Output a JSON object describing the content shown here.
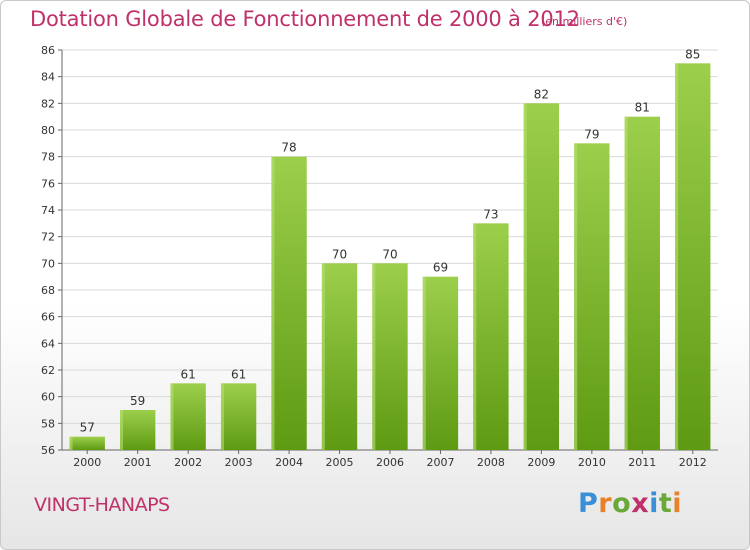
{
  "title": "Dotation Globale de Fonctionnement de 2000 à 2012",
  "subtitle": "(en milliers d'€)",
  "commune": "VINGT-HANAPS",
  "logo": {
    "letters": [
      "P",
      "r",
      "o",
      "x",
      "i",
      "t",
      "i"
    ],
    "colors": [
      "#3a8fd6",
      "#e8822a",
      "#6aa83a",
      "#c0306a",
      "#3a8fd6",
      "#6aa83a",
      "#e8822a"
    ]
  },
  "colors": {
    "accent": "#c0306a",
    "bar_light": "#9ccf4c",
    "bar_dark": "#5e9a12",
    "grid": "#d9d9d9",
    "axis_text": "#333333"
  },
  "chart_data": {
    "type": "bar",
    "title": "Dotation Globale de Fonctionnement de 2000 à 2012",
    "xlabel": "",
    "ylabel": "(en milliers d'€)",
    "categories": [
      "2000",
      "2001",
      "2002",
      "2003",
      "2004",
      "2005",
      "2006",
      "2007",
      "2008",
      "2009",
      "2010",
      "2011",
      "2012"
    ],
    "values": [
      57,
      59,
      61,
      61,
      78,
      70,
      70,
      69,
      73,
      82,
      79,
      81,
      85
    ],
    "ylim": [
      56,
      86
    ],
    "yticks": [
      56,
      58,
      60,
      62,
      64,
      66,
      68,
      70,
      72,
      74,
      76,
      78,
      80,
      82,
      84,
      86
    ],
    "grid": true,
    "legend": "none"
  }
}
